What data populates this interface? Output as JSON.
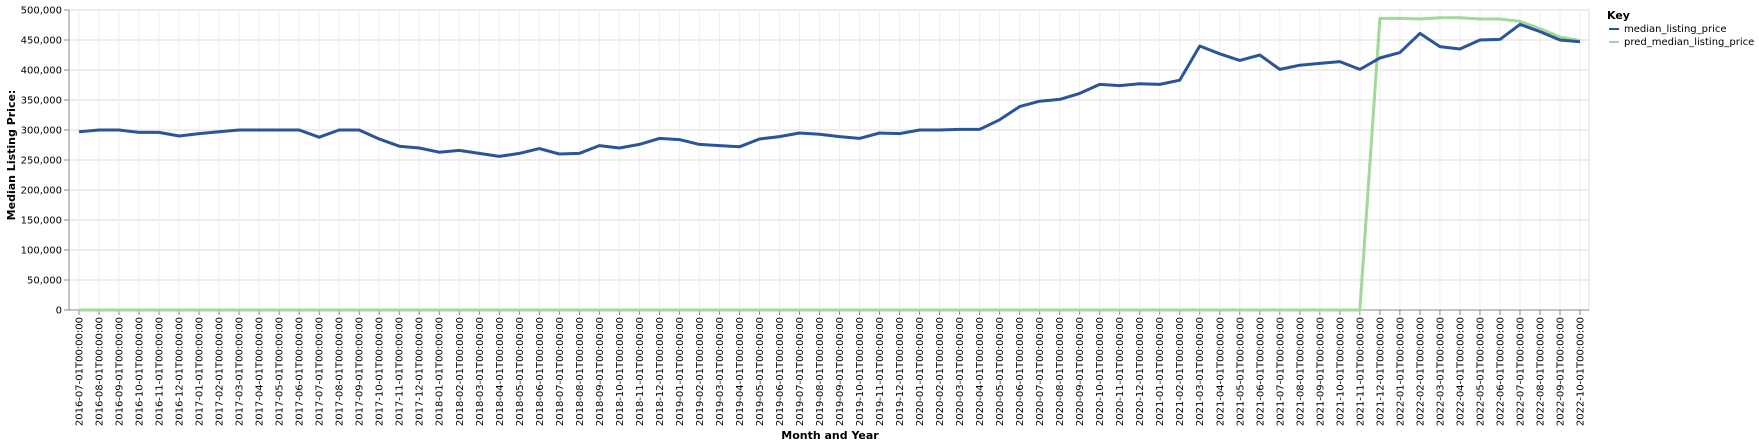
{
  "chart_data": {
    "type": "line",
    "xlabel": "Month and Year",
    "ylabel": "Median Listing Price:",
    "ylim": [
      0,
      500000
    ],
    "yticks": [
      0,
      50000,
      100000,
      150000,
      200000,
      250000,
      300000,
      350000,
      400000,
      450000,
      500000
    ],
    "ytick_labels": [
      "0",
      "50,000",
      "100,000",
      "150,000",
      "200,000",
      "250,000",
      "300,000",
      "350,000",
      "400,000",
      "450,000",
      "500,000"
    ],
    "grid": true,
    "legend": {
      "title": "Key",
      "placement": "top-right"
    },
    "x": [
      "2016-07-01T00:00:00",
      "2016-08-01T00:00:00",
      "2016-09-01T00:00:00",
      "2016-10-01T00:00:00",
      "2016-11-01T00:00:00",
      "2016-12-01T00:00:00",
      "2017-01-01T00:00:00",
      "2017-02-01T00:00:00",
      "2017-03-01T00:00:00",
      "2017-04-01T00:00:00",
      "2017-05-01T00:00:00",
      "2017-06-01T00:00:00",
      "2017-07-01T00:00:00",
      "2017-08-01T00:00:00",
      "2017-09-01T00:00:00",
      "2017-10-01T00:00:00",
      "2017-11-01T00:00:00",
      "2017-12-01T00:00:00",
      "2018-01-01T00:00:00",
      "2018-02-01T00:00:00",
      "2018-03-01T00:00:00",
      "2018-04-01T00:00:00",
      "2018-05-01T00:00:00",
      "2018-06-01T00:00:00",
      "2018-07-01T00:00:00",
      "2018-08-01T00:00:00",
      "2018-09-01T00:00:00",
      "2018-10-01T00:00:00",
      "2018-11-01T00:00:00",
      "2018-12-01T00:00:00",
      "2019-01-01T00:00:00",
      "2019-02-01T00:00:00",
      "2019-03-01T00:00:00",
      "2019-04-01T00:00:00",
      "2019-05-01T00:00:00",
      "2019-06-01T00:00:00",
      "2019-07-01T00:00:00",
      "2019-08-01T00:00:00",
      "2019-09-01T00:00:00",
      "2019-10-01T00:00:00",
      "2019-11-01T00:00:00",
      "2019-12-01T00:00:00",
      "2020-01-01T00:00:00",
      "2020-02-01T00:00:00",
      "2020-03-01T00:00:00",
      "2020-04-01T00:00:00",
      "2020-05-01T00:00:00",
      "2020-06-01T00:00:00",
      "2020-07-01T00:00:00",
      "2020-08-01T00:00:00",
      "2020-09-01T00:00:00",
      "2020-10-01T00:00:00",
      "2020-11-01T00:00:00",
      "2020-12-01T00:00:00",
      "2021-01-01T00:00:00",
      "2021-02-01T00:00:00",
      "2021-03-01T00:00:00",
      "2021-04-01T00:00:00",
      "2021-05-01T00:00:00",
      "2021-06-01T00:00:00",
      "2021-07-01T00:00:00",
      "2021-08-01T00:00:00",
      "2021-09-01T00:00:00",
      "2021-10-01T00:00:00",
      "2021-11-01T00:00:00",
      "2021-12-01T00:00:00",
      "2022-01-01T00:00:00",
      "2022-02-01T00:00:00",
      "2022-03-01T00:00:00",
      "2022-04-01T00:00:00",
      "2022-05-01T00:00:00",
      "2022-06-01T00:00:00",
      "2022-07-01T00:00:00",
      "2022-08-01T00:00:00",
      "2022-09-01T00:00:00",
      "2022-10-01T00:00:00"
    ],
    "series": [
      {
        "name": "median_listing_price",
        "color": "#2a5599",
        "values": [
          297000,
          300000,
          300000,
          296000,
          296000,
          290000,
          294000,
          297000,
          300000,
          300000,
          300000,
          300000,
          288000,
          300000,
          300000,
          285000,
          273000,
          270000,
          263000,
          266000,
          261000,
          256000,
          261000,
          269000,
          260000,
          261000,
          274000,
          270000,
          276000,
          286000,
          284000,
          276000,
          274000,
          272000,
          285000,
          289000,
          295000,
          293000,
          289000,
          286000,
          295000,
          294000,
          300000,
          300000,
          301000,
          301000,
          317000,
          339000,
          348000,
          351000,
          361000,
          376000,
          374000,
          377000,
          376000,
          383000,
          440000,
          427000,
          416000,
          425000,
          401000,
          408000,
          411000,
          414000,
          401000,
          420000,
          429000,
          461000,
          439000,
          435000,
          450000,
          451000,
          476000,
          464000,
          450000,
          447000
        ]
      },
      {
        "name": "pred_median_listing_price",
        "color": "#a1d99b",
        "values": [
          0,
          0,
          0,
          0,
          0,
          0,
          0,
          0,
          0,
          0,
          0,
          0,
          0,
          0,
          0,
          0,
          0,
          0,
          0,
          0,
          0,
          0,
          0,
          0,
          0,
          0,
          0,
          0,
          0,
          0,
          0,
          0,
          0,
          0,
          0,
          0,
          0,
          0,
          0,
          0,
          0,
          0,
          0,
          0,
          0,
          0,
          0,
          0,
          0,
          0,
          0,
          0,
          0,
          0,
          0,
          0,
          0,
          0,
          0,
          0,
          0,
          0,
          0,
          0,
          0,
          486000,
          486000,
          485000,
          487000,
          487000,
          485000,
          485000,
          481000,
          469000,
          455000,
          449000
        ]
      }
    ]
  }
}
